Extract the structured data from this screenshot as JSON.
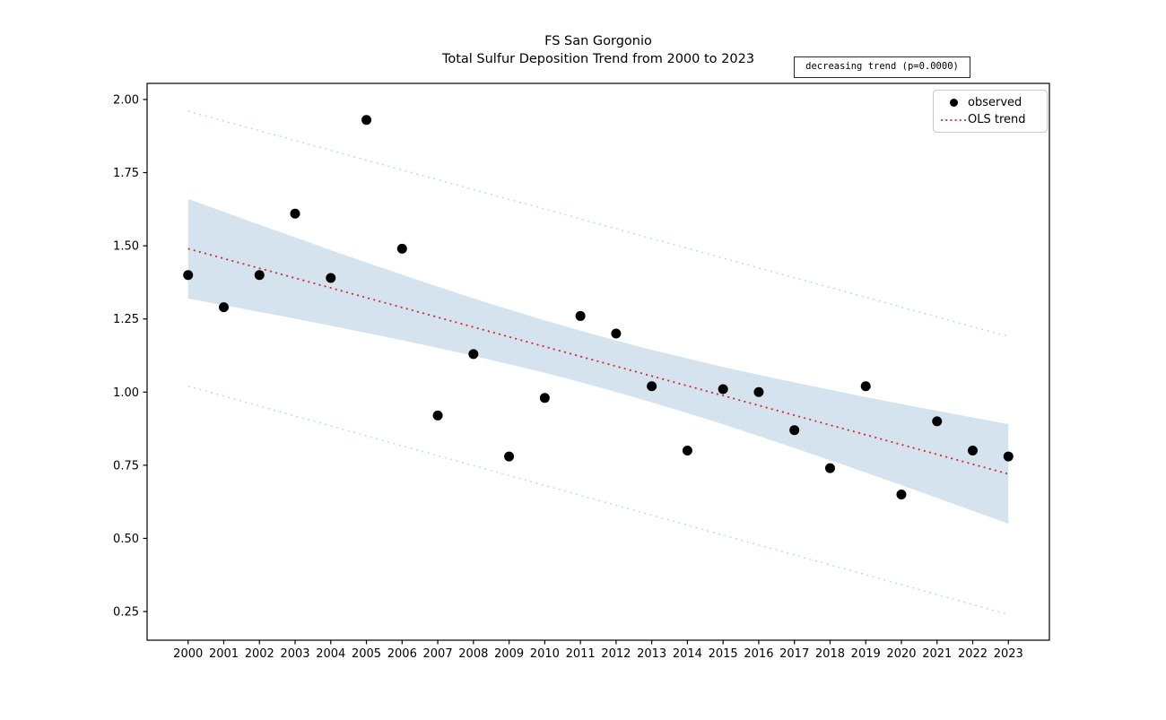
{
  "chart_data": {
    "type": "scatter",
    "title": "FS San Gorgonio",
    "subtitle": "Total Sulfur Deposition Trend from 2000 to 2023",
    "annotation": "decreasing trend (p=0.0000)",
    "xlabel": "",
    "ylabel": "",
    "x": [
      2000,
      2001,
      2002,
      2003,
      2004,
      2005,
      2006,
      2007,
      2008,
      2009,
      2010,
      2011,
      2012,
      2013,
      2014,
      2015,
      2016,
      2017,
      2018,
      2019,
      2020,
      2021,
      2022,
      2023
    ],
    "series": [
      {
        "name": "observed",
        "type": "scatter",
        "values": [
          1.4,
          1.29,
          1.4,
          1.61,
          1.39,
          1.93,
          1.49,
          0.92,
          1.13,
          0.78,
          0.98,
          1.26,
          1.2,
          1.02,
          0.8,
          1.01,
          1.0,
          0.87,
          0.74,
          1.02,
          0.65,
          0.9,
          0.8,
          0.78
        ]
      },
      {
        "name": "OLS trend",
        "type": "line",
        "x": [
          2000,
          2023
        ],
        "values": [
          1.49,
          0.72
        ]
      }
    ],
    "confidence_band": {
      "x": [
        2000,
        2001,
        2002,
        2003,
        2004,
        2005,
        2006,
        2007,
        2008,
        2009,
        2010,
        2011,
        2012,
        2013,
        2014,
        2015,
        2016,
        2017,
        2018,
        2019,
        2020,
        2021,
        2022,
        2023
      ],
      "upper": [
        1.66,
        1.616,
        1.572,
        1.529,
        1.485,
        1.443,
        1.401,
        1.36,
        1.32,
        1.282,
        1.245,
        1.21,
        1.176,
        1.144,
        1.115,
        1.086,
        1.059,
        1.033,
        1.008,
        0.983,
        0.959,
        0.936,
        0.913,
        0.89
      ],
      "lower": [
        1.32,
        1.297,
        1.274,
        1.251,
        1.227,
        1.202,
        1.177,
        1.151,
        1.124,
        1.095,
        1.066,
        1.034,
        1.0,
        0.965,
        0.928,
        0.89,
        0.85,
        0.809,
        0.767,
        0.725,
        0.682,
        0.638,
        0.594,
        0.55
      ]
    },
    "prediction_interval": {
      "x": [
        2000,
        2023
      ],
      "upper": [
        1.96,
        1.19
      ],
      "lower": [
        1.02,
        0.24
      ]
    },
    "xlim": [
      1998.85,
      2024.15
    ],
    "ylim": [
      0.152,
      2.055
    ],
    "xticks": [
      2000,
      2001,
      2002,
      2003,
      2004,
      2005,
      2006,
      2007,
      2008,
      2009,
      2010,
      2011,
      2012,
      2013,
      2014,
      2015,
      2016,
      2017,
      2018,
      2019,
      2020,
      2021,
      2022,
      2023
    ],
    "yticks": [
      0.25,
      0.5,
      0.75,
      1.0,
      1.25,
      1.5,
      1.75,
      2.0
    ],
    "grid": false,
    "legend_position": "upper right",
    "colors": {
      "observed": "#000000",
      "trend": "#d62728",
      "ci_band": "#d5e3ef",
      "pi_line": "#c2d6ea",
      "axis": "#000000"
    }
  }
}
